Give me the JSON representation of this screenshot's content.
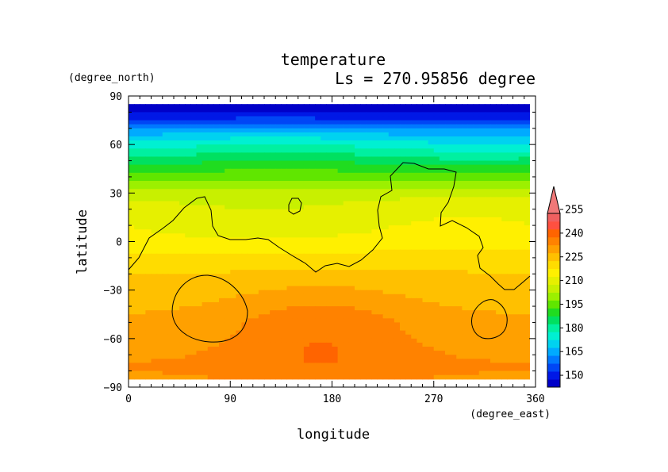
{
  "chart_data": {
    "type": "heatmap",
    "title": "temperature",
    "subtitle": "Ls = 270.95856 degree",
    "xlabel": "longitude",
    "ylabel": "latitude",
    "x_units": "(degree_east)",
    "y_units": "(degree_north)",
    "xlim": [
      0,
      360
    ],
    "ylim": [
      -90,
      90
    ],
    "x_ticks": [
      0,
      90,
      180,
      270,
      360
    ],
    "y_ticks": [
      90,
      60,
      30,
      0,
      -30,
      -60,
      -90
    ],
    "x_tick_labels": [
      "0",
      "90",
      "180",
      "270",
      "360"
    ],
    "y_tick_labels": [
      "90",
      "60",
      "30",
      "0",
      "−30",
      "−60",
      "−90"
    ],
    "colorbar": {
      "levels": [
        145,
        150,
        155,
        160,
        165,
        170,
        175,
        180,
        185,
        190,
        195,
        200,
        205,
        210,
        215,
        220,
        225,
        230,
        235,
        240,
        245,
        250,
        255,
        260
      ],
      "tick_values": [
        150,
        165,
        180,
        195,
        210,
        225,
        240,
        255
      ],
      "tick_labels": [
        "150",
        "165",
        "180",
        "195",
        "210",
        "225",
        "240",
        "255"
      ],
      "colors": [
        "#0000c8",
        "#0018e6",
        "#0046f5",
        "#0078ff",
        "#00aaff",
        "#00d2f0",
        "#00f0d2",
        "#00f0a0",
        "#00e060",
        "#20dc20",
        "#60e600",
        "#9cf000",
        "#c8f000",
        "#e6f000",
        "#fff000",
        "#ffdc00",
        "#ffc000",
        "#ffa000",
        "#ff8200",
        "#ff6400",
        "#ff5040",
        "#f06060"
      ],
      "overflow_color": "#f07878"
    },
    "zonal_profile": {
      "latitude": [
        85,
        80,
        75,
        70,
        65,
        60,
        55,
        50,
        45,
        40,
        35,
        30,
        25,
        20,
        15,
        10,
        5,
        0,
        -5,
        -10,
        -15,
        -20,
        -25,
        -30,
        -35,
        -40,
        -45,
        -50,
        -55,
        -60,
        -65,
        -70,
        -75,
        -80,
        -85
      ],
      "temperature": [
        147,
        150,
        156,
        165,
        172,
        178,
        183,
        188,
        193,
        198,
        203,
        207,
        210,
        212,
        213,
        214,
        215,
        217,
        219,
        221,
        223,
        225,
        226,
        227,
        228,
        229,
        230,
        231,
        231,
        232,
        233,
        234,
        235,
        235,
        234
      ]
    },
    "warm_region": {
      "center_lon": 170,
      "center_lat": -55,
      "lon_halfwidth": 85,
      "lat_halfwidth": 30,
      "anomaly": 8
    }
  }
}
